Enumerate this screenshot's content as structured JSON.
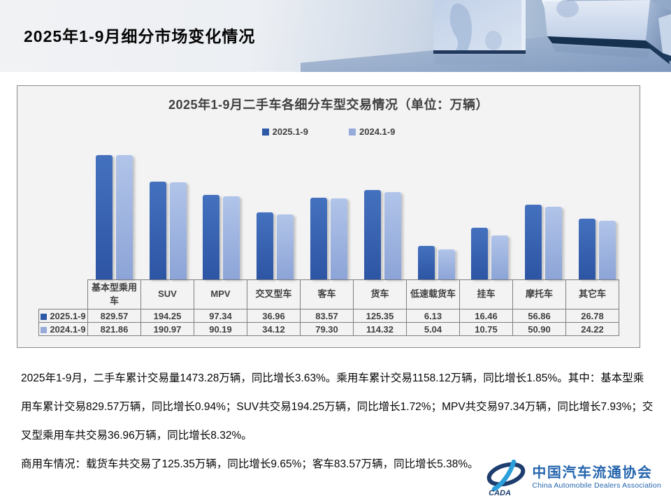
{
  "slide": {
    "title": "2025年1-9月细分市场变化情况"
  },
  "chart_data": {
    "type": "bar",
    "title": "2025年1-9月二手车各细分车型交易情况（单位：万辆）",
    "unit": "万辆",
    "scale": "log10",
    "legend_position": "top",
    "grid": false,
    "categories": [
      "基本型乘用车",
      "SUV",
      "MPV",
      "交叉型车",
      "客车",
      "货车",
      "低速载货车",
      "挂车",
      "摩托车",
      "其它车"
    ],
    "series": [
      {
        "name": "2025.1-9",
        "color": "#2e59a7",
        "gradient": [
          "#4471be",
          "#2d55a4"
        ],
        "values": [
          829.57,
          194.25,
          97.34,
          36.96,
          83.57,
          125.35,
          6.13,
          16.46,
          56.86,
          26.78
        ]
      },
      {
        "name": "2024.1-9",
        "color": "#97abdb",
        "gradient": [
          "#b1c4e9",
          "#8ca4d7"
        ],
        "values": [
          821.86,
          190.97,
          90.19,
          34.12,
          79.3,
          114.32,
          5.04,
          10.75,
          50.9,
          24.22
        ]
      }
    ]
  },
  "paragraphs": [
    "2025年1-9月，二手车累计交易量1473.28万辆，同比增长3.63%。乘用车累计交易1158.12万辆，同比增长1.85%。其中：基本型乘用车累计交易829.57万辆，同比增长0.94%；SUV共交易194.25万辆，同比增长1.72%；MPV共交易97.34万辆，同比增长7.93%；交叉型乘用车共交易36.96万辆，同比增长8.32%。",
    "商用车情况：载货车共交易了125.35万辆，同比增长9.65%；客车83.57万辆，同比增长5.38%。"
  ],
  "logo": {
    "emblem": "CADA",
    "name_cn": "中国汽车流通协会",
    "name_en": "China Automobile Dealers Association",
    "brand_color": "#2565ae",
    "emblem_navy": "#1d3e6e",
    "emblem_cyan": "#2b9fd9"
  }
}
